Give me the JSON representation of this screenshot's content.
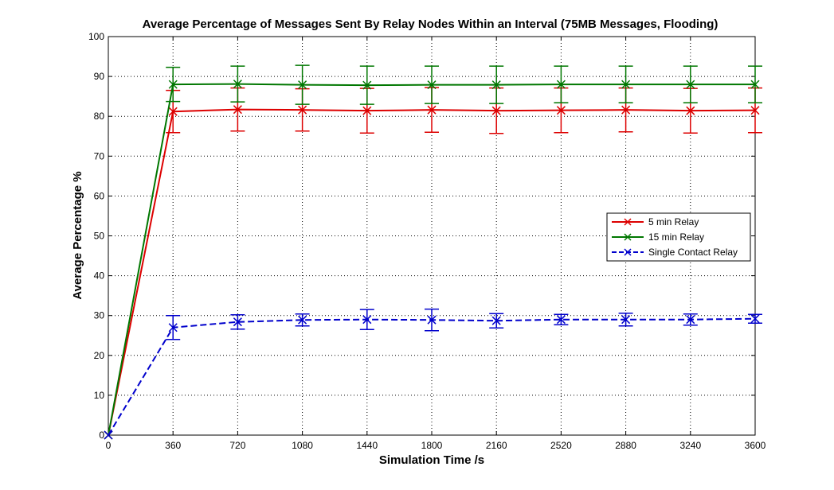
{
  "chart_data": {
    "type": "line",
    "title": "Average Percentage of Messages Sent By Relay Nodes Within an Interval (75MB Messages, Flooding)",
    "xlabel": "Simulation Time /s",
    "ylabel": "Average Percentage %",
    "xlim": [
      0,
      3600
    ],
    "ylim": [
      0,
      100
    ],
    "x_ticks": [
      0,
      360,
      720,
      1080,
      1440,
      1800,
      2160,
      2520,
      2880,
      3240,
      3600
    ],
    "y_ticks": [
      0,
      10,
      20,
      30,
      40,
      50,
      60,
      70,
      80,
      90,
      100
    ],
    "grid": true,
    "legend_position": "center-right",
    "x": [
      0,
      360,
      720,
      1080,
      1440,
      1800,
      2160,
      2520,
      2880,
      3240,
      3600
    ],
    "series": [
      {
        "name": "5 min Relay",
        "color": "#dd0000",
        "line_style": "solid",
        "marker": "x",
        "values": [
          0,
          81.2,
          81.7,
          81.6,
          81.4,
          81.6,
          81.4,
          81.5,
          81.6,
          81.4,
          81.5
        ],
        "error": [
          0,
          5.3,
          5.4,
          5.3,
          5.6,
          5.6,
          5.7,
          5.6,
          5.5,
          5.6,
          5.6
        ]
      },
      {
        "name": "15 min Relay",
        "color": "#007700",
        "line_style": "solid",
        "marker": "x",
        "values": [
          0,
          88.0,
          88.1,
          87.9,
          87.8,
          87.9,
          87.9,
          88.0,
          88.0,
          88.0,
          88.0
        ],
        "error": [
          0,
          4.3,
          4.5,
          4.9,
          4.8,
          4.7,
          4.7,
          4.6,
          4.6,
          4.6,
          4.6
        ]
      },
      {
        "name": "Single Contact Relay",
        "color": "#0000cc",
        "line_style": "dashed",
        "marker": "x",
        "values": [
          0,
          27.0,
          28.4,
          28.9,
          29.0,
          28.9,
          28.7,
          29.0,
          29.0,
          29.0,
          29.2
        ],
        "error": [
          0,
          3.0,
          1.8,
          1.5,
          2.5,
          2.7,
          1.8,
          1.3,
          1.6,
          1.4,
          1.1
        ]
      }
    ]
  }
}
